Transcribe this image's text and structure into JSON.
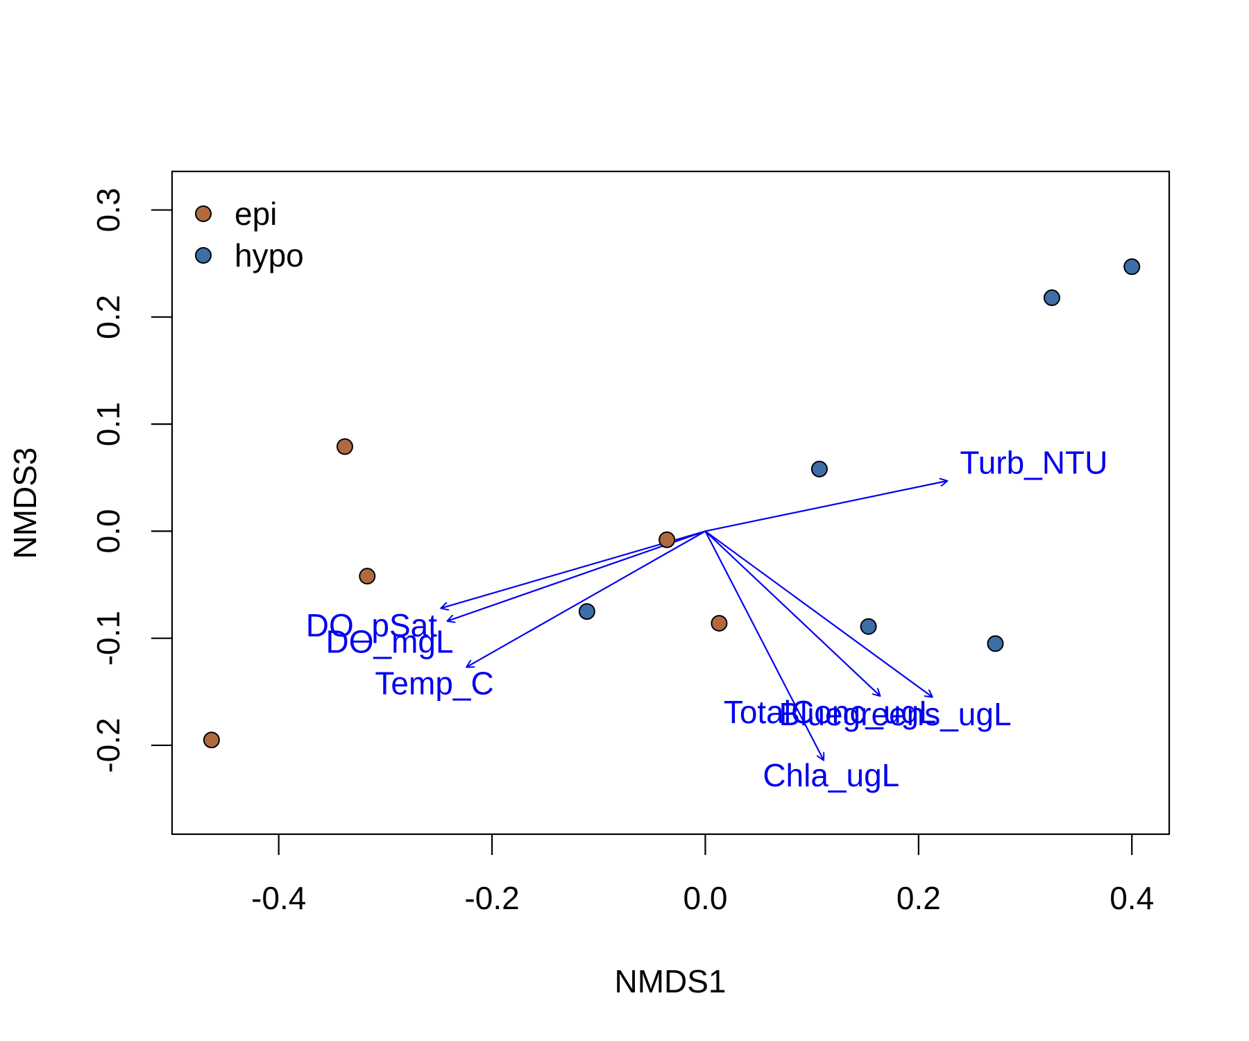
{
  "chart_data": {
    "type": "scatter",
    "title": "",
    "xlabel": "NMDS1",
    "ylabel": "NMDS3",
    "xlim": [
      -0.5,
      0.435
    ],
    "ylim": [
      -0.283,
      0.336
    ],
    "xticks": [
      -0.4,
      -0.2,
      0.0,
      0.2,
      0.4
    ],
    "xtick_labels": [
      "-0.4",
      "-0.2",
      "0.0",
      "0.2",
      "0.4"
    ],
    "yticks": [
      -0.2,
      -0.1,
      0.0,
      0.1,
      0.2,
      0.3
    ],
    "ytick_labels": [
      "-0.2",
      "-0.1",
      "0.0",
      "0.1",
      "0.2",
      "0.3"
    ],
    "grid": false,
    "legend_position": "top-left",
    "series": [
      {
        "name": "epi",
        "color": "#B06A40",
        "points": [
          {
            "x": -0.463,
            "y": -0.195
          },
          {
            "x": -0.338,
            "y": 0.079
          },
          {
            "x": -0.317,
            "y": -0.042
          },
          {
            "x": -0.036,
            "y": -0.008
          },
          {
            "x": 0.013,
            "y": -0.086
          }
        ]
      },
      {
        "name": "hypo",
        "color": "#3D6EA8",
        "points": [
          {
            "x": -0.111,
            "y": -0.075
          },
          {
            "x": 0.107,
            "y": 0.058
          },
          {
            "x": 0.153,
            "y": -0.089
          },
          {
            "x": 0.272,
            "y": -0.105
          },
          {
            "x": 0.325,
            "y": 0.218
          },
          {
            "x": 0.4,
            "y": 0.247
          }
        ]
      }
    ],
    "vectors": {
      "color": "#0000EE",
      "items": [
        {
          "name": "Turb_NTU",
          "x": 0.227,
          "y": 0.047,
          "label_x": 0.308,
          "label_y": 0.064
        },
        {
          "name": "DO_pSat",
          "x": -0.248,
          "y": -0.072,
          "label_x": -0.313,
          "label_y": -0.088
        },
        {
          "name": "DO_mgL",
          "x": -0.242,
          "y": -0.084,
          "label_x": -0.296,
          "label_y": -0.103
        },
        {
          "name": "Temp_C",
          "x": -0.224,
          "y": -0.127,
          "label_x": -0.254,
          "label_y": -0.142
        },
        {
          "name": "TotalConc_ugL",
          "x": 0.164,
          "y": -0.154,
          "label_x": 0.117,
          "label_y": -0.169
        },
        {
          "name": "Bluegreens_ugL",
          "x": 0.213,
          "y": -0.155,
          "label_x": 0.178,
          "label_y": -0.171
        },
        {
          "name": "Chla_ugL",
          "x": 0.111,
          "y": -0.214,
          "label_x": 0.118,
          "label_y": -0.228
        }
      ]
    }
  }
}
